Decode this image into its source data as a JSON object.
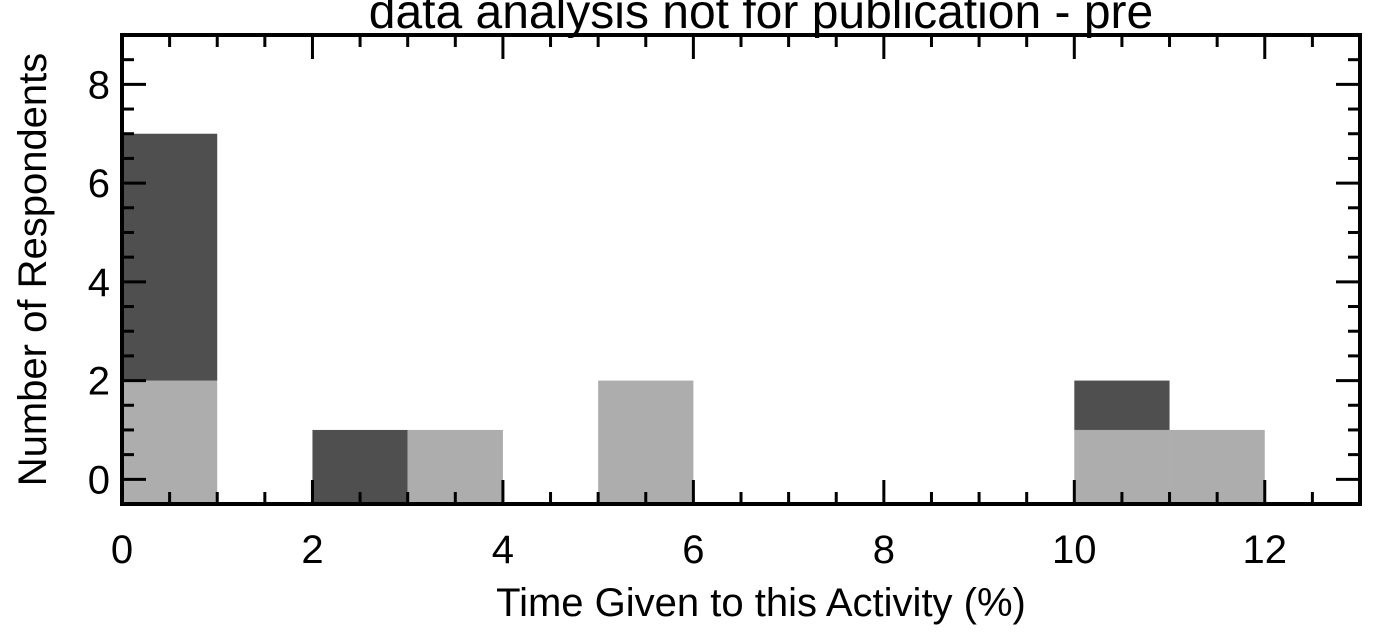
{
  "chart_data": {
    "type": "bar",
    "stacked": true,
    "title": "data analysis not for publication - pre",
    "xlabel": "Time Given to this Activity (%)",
    "ylabel": "Number of Respondents",
    "xlim": [
      0,
      13
    ],
    "ylim": [
      -0.5,
      9
    ],
    "xticks": [
      0,
      2,
      4,
      6,
      8,
      10,
      12
    ],
    "yticks": [
      0,
      2,
      4,
      6,
      8
    ],
    "bin_width": 1,
    "grid": false,
    "legend": "none",
    "bins": [
      {
        "x0": 0,
        "x1": 1,
        "light": 2,
        "dark": 5
      },
      {
        "x0": 2,
        "x1": 3,
        "light": 0,
        "dark": 1
      },
      {
        "x0": 3,
        "x1": 4,
        "light": 1,
        "dark": 0
      },
      {
        "x0": 5,
        "x1": 6,
        "light": 2,
        "dark": 0
      },
      {
        "x0": 10,
        "x1": 11,
        "light": 1,
        "dark": 1
      },
      {
        "x0": 11,
        "x1": 12,
        "light": 1,
        "dark": 0
      }
    ],
    "colors": {
      "light": "#adadad",
      "dark": "#4f4f4f",
      "axis": "#000000"
    }
  }
}
